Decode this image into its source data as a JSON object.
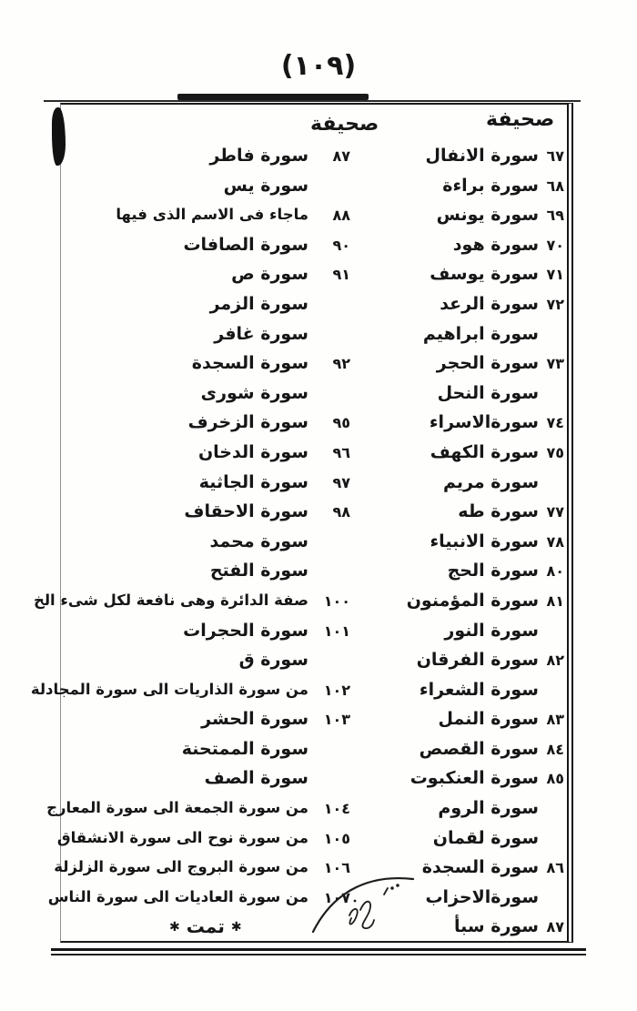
{
  "page": {
    "header_number": "(١٠٩)",
    "end_mark": "تمت",
    "ornament": "✱"
  },
  "columns": {
    "first": {
      "header": "صحيفة",
      "rows": [
        {
          "num": "٦٧",
          "name": "سورة الانفال"
        },
        {
          "num": "٦٨",
          "name": "سورة براءة"
        },
        {
          "num": "٦٩",
          "name": "سورة يونس"
        },
        {
          "num": "٧٠",
          "name": "سورة هود"
        },
        {
          "num": "٧١",
          "name": "سورة يوسف"
        },
        {
          "num": "٧٢",
          "name": "سورة الرعد"
        },
        {
          "num": "",
          "name": "سورة ابراهيم"
        },
        {
          "num": "٧٣",
          "name": "سورة الحجر"
        },
        {
          "num": "",
          "name": "سورة النحل"
        },
        {
          "num": "٧٤",
          "name": "سورةالاسراء"
        },
        {
          "num": "٧٥",
          "name": "سورة الكهف"
        },
        {
          "num": "",
          "name": "سورة مريم"
        },
        {
          "num": "٧٧",
          "name": "سورة طه"
        },
        {
          "num": "٧٨",
          "name": "سورة الانبياء"
        },
        {
          "num": "٨٠",
          "name": "سورة الحج"
        },
        {
          "num": "٨١",
          "name": "سورة المؤمنون"
        },
        {
          "num": "",
          "name": "سورة النور"
        },
        {
          "num": "٨٢",
          "name": "سورة الفرقان"
        },
        {
          "num": "",
          "name": "سورة الشعراء"
        },
        {
          "num": "٨٣",
          "name": "سورة النمل"
        },
        {
          "num": "٨٤",
          "name": "سورة القصص"
        },
        {
          "num": "٨٥",
          "name": "سورة العنكبوت"
        },
        {
          "num": "",
          "name": "سورة الروم"
        },
        {
          "num": "",
          "name": "سورة لقمان"
        },
        {
          "num": "٨٦",
          "name": "سورة السجدة"
        },
        {
          "num": "",
          "name": "سورةالاحزاب"
        },
        {
          "num": "٨٧",
          "name": "سورة سبأ"
        }
      ]
    },
    "second": {
      "header": "صحيفة",
      "rows": [
        {
          "num": "٨٧",
          "name": "سورة فاطر"
        },
        {
          "num": "",
          "name": "سورة يس"
        },
        {
          "num": "٨٨",
          "name": "ماجاء فى الاسم الذى فيها"
        },
        {
          "num": "٩٠",
          "name": "سورة الصافات"
        },
        {
          "num": "٩١",
          "name": "سورة ص"
        },
        {
          "num": "",
          "name": "سورة الزمر"
        },
        {
          "num": "",
          "name": "سورة غافر"
        },
        {
          "num": "٩٢",
          "name": "سورة السجدة"
        },
        {
          "num": "",
          "name": "سورة شورى"
        },
        {
          "num": "٩٥",
          "name": "سورة الزخرف"
        },
        {
          "num": "٩٦",
          "name": "سورة الدخان"
        },
        {
          "num": "٩٧",
          "name": "سورة الجاثية"
        },
        {
          "num": "٩٨",
          "name": "سورة الاحقاف"
        },
        {
          "num": "",
          "name": "سورة محمد"
        },
        {
          "num": "",
          "name": "سورة الفتح"
        },
        {
          "num": "١٠٠",
          "name": "صفة الدائرة وهى نافعة لكل شىء الخ"
        },
        {
          "num": "١٠١",
          "name": "سورة الحجرات"
        },
        {
          "num": "",
          "name": "سورة ق"
        },
        {
          "num": "١٠٢",
          "name": "من سورة الذاريات الى سورة المجادلة"
        },
        {
          "num": "١٠٣",
          "name": "سورة الحشر"
        },
        {
          "num": "",
          "name": "سورة الممتحنة"
        },
        {
          "num": "",
          "name": "سورة الصف"
        },
        {
          "num": "١٠٤",
          "name": "من سورة الجمعة الى سورة المعارج"
        },
        {
          "num": "١٠٥",
          "name": "من سورة نوح الى سورة الانشقاق"
        },
        {
          "num": "١٠٦",
          "name": "من سورة البروج الى سورة الزلزلة"
        },
        {
          "num": "١٠٧",
          "name": "من سورة العاديات الى سورة الناس"
        },
        {
          "end": true
        }
      ]
    }
  }
}
